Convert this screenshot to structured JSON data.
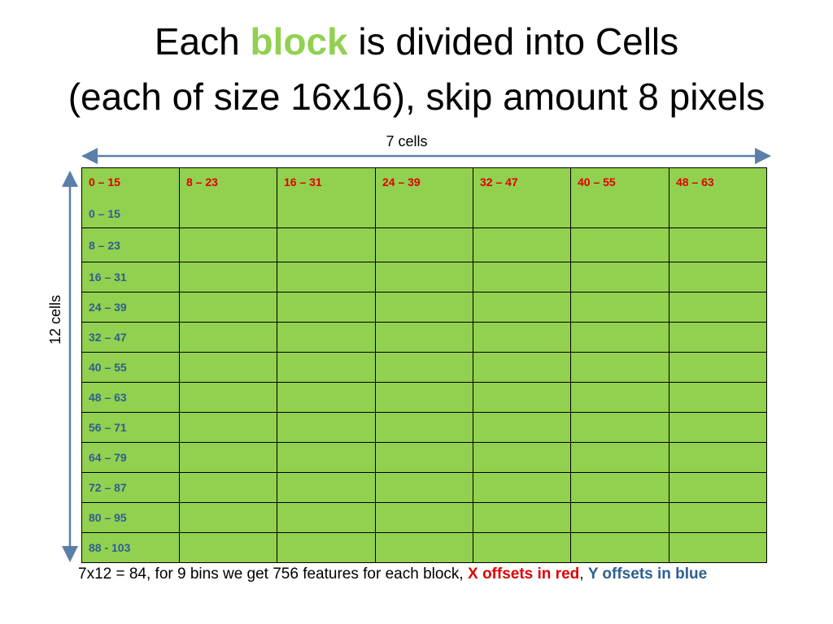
{
  "title": {
    "line1_before": "Each ",
    "line1_highlight": "block",
    "line1_after": " is divided into Cells",
    "line2": "(each of size 16x16), skip amount 8 pixels"
  },
  "caption_top": "7 cells",
  "caption_left": "12 cells",
  "grid": {
    "x_offsets": [
      "0 – 15",
      "8 – 23",
      "16 – 31",
      "24 – 39",
      "32 – 47",
      "40 – 55",
      "48 – 63"
    ],
    "y_offsets": [
      "0 – 15",
      "8 – 23",
      "16 – 31",
      "24 – 39",
      "32 – 47",
      "40 – 55",
      "48 – 63",
      "56 – 71",
      "64 – 79",
      "72 – 87",
      "80 – 95",
      "88 - 103"
    ]
  },
  "footer": {
    "text": "7x12 = 84, for 9 bins we get 756 features for each block, ",
    "x_label": "X offsets in red",
    "separator": ", ",
    "y_label": "Y offsets in blue"
  },
  "colors": {
    "cell_fill": "#92d050",
    "highlight_green": "#92d050",
    "x_red": "#e00000",
    "y_blue": "#2e5f8f",
    "arrow": "#5b7fa8"
  }
}
